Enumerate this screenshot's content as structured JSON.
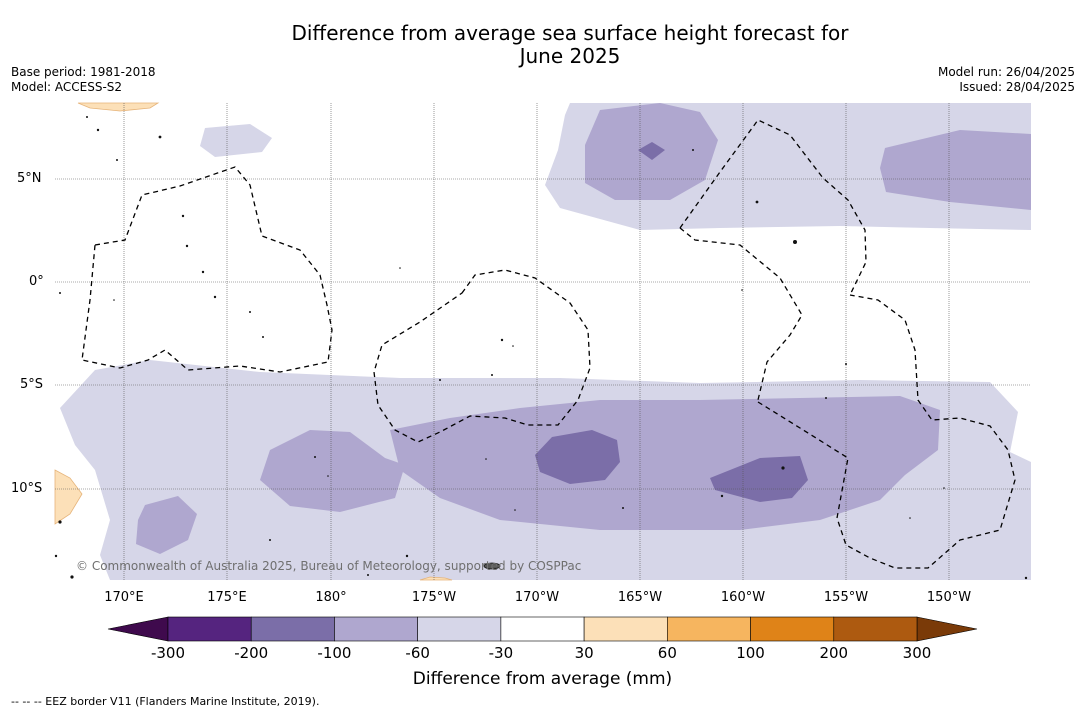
{
  "title": "Difference from average sea surface height forecast for",
  "title_line2": "June 2025",
  "base_period": "Base period: 1981-2018",
  "model": "Model: ACCESS-S2",
  "model_run": "Model run: 26/04/2025",
  "issued": "Issued: 28/04/2025",
  "lat_labels": [
    "5°N",
    "0°",
    "5°S",
    "10°S"
  ],
  "lon_labels": [
    "170°E",
    "175°E",
    "180°",
    "175°W",
    "170°W",
    "165°W",
    "160°W",
    "155°W",
    "150°W"
  ],
  "copyright": "© Commonwealth of Australia 2025, Bureau of Meteorology, supported by COSPPac",
  "colorbar": {
    "label": "Difference from average (mm)",
    "ticks": [
      "-300",
      "-200",
      "-100",
      "-60",
      "-30",
      "30",
      "60",
      "100",
      "200",
      "300"
    ],
    "colors": [
      "#3f0a4d",
      "#55247f",
      "#7b6ea8",
      "#afa7cf",
      "#d6d6e8",
      "#ffffff",
      "#fce0b8",
      "#f6b55f",
      "#df8318",
      "#ad5a10",
      "#7a3a08"
    ]
  },
  "footer": "--  --  -- EEZ border V11 (Flanders Marine Institute, 2019)."
}
